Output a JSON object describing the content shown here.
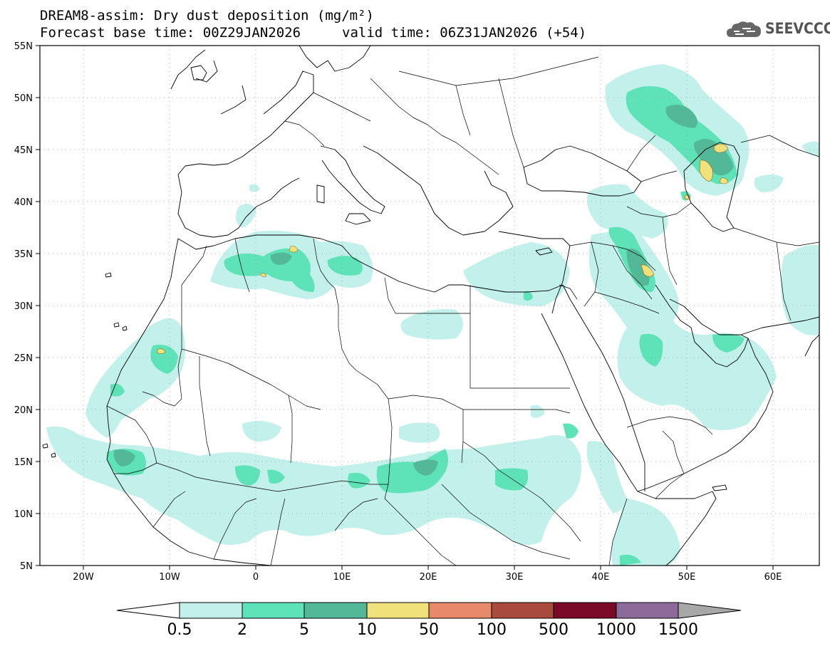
{
  "title": {
    "line1": "DREAM8-assim: Dry dust deposition (mg/m²)",
    "base_time": "Forecast base time: 00Z29JAN2026",
    "valid_time": "valid time: 06Z31JAN2026 (+54)"
  },
  "logo": {
    "text": "SEEVCCC",
    "icon": "cloud-icon"
  },
  "map": {
    "lon_range": [
      -25,
      65
    ],
    "lat_range": [
      5,
      55
    ],
    "lon_ticks": [
      "20W",
      "10W",
      "0",
      "10E",
      "20E",
      "30E",
      "40E",
      "50E",
      "60E"
    ],
    "lat_ticks": [
      "55N",
      "50N",
      "45N",
      "40N",
      "35N",
      "30N",
      "25N",
      "20N",
      "15N",
      "10N",
      "5N"
    ],
    "grid": "dotted"
  },
  "colorbar": {
    "labels": [
      "0.5",
      "2",
      "5",
      "10",
      "50",
      "100",
      "500",
      "1000",
      "1500"
    ],
    "colors": [
      "#c2f0ea",
      "#5ee2b8",
      "#53b897",
      "#f0e17a",
      "#e8896a",
      "#a84b3d",
      "#7a0a28",
      "#8c6b9b",
      "#a8a8a8"
    ]
  }
}
